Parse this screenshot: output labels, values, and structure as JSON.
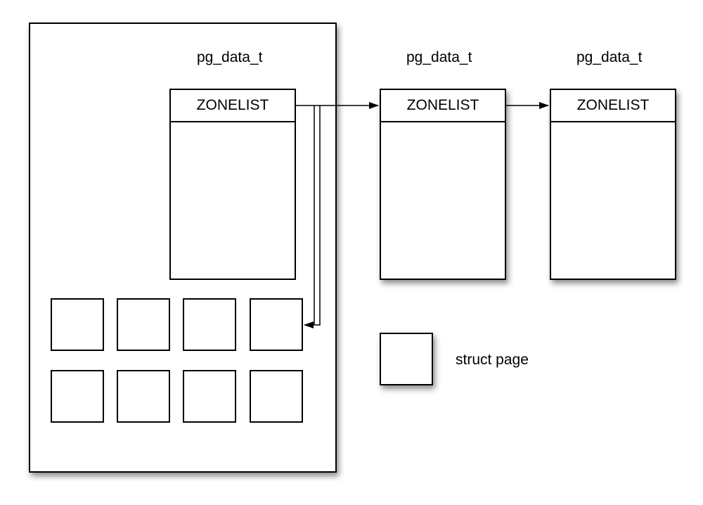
{
  "nodes": [
    {
      "title": "pg_data_t",
      "zonelist_label": "ZONELIST"
    },
    {
      "title": "pg_data_t",
      "zonelist_label": "ZONELIST"
    },
    {
      "title": "pg_data_t",
      "zonelist_label": "ZONELIST"
    }
  ],
  "legend": {
    "label": "struct page"
  }
}
